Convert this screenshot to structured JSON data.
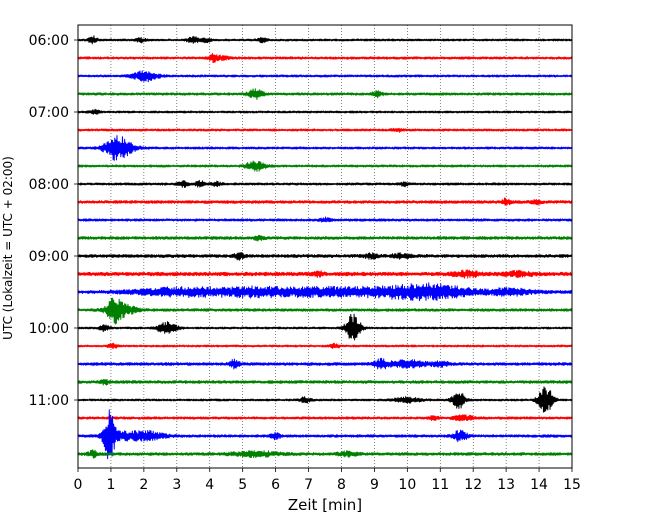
{
  "chart_data": {
    "type": "line",
    "chart_kind": "helicorder seismogram",
    "xlabel": "Zeit  [min]",
    "ylabel": "UTC (Lokalzeit = UTC + 02:00)",
    "xlim": [
      0,
      15
    ],
    "xticks": [
      "0",
      "1",
      "2",
      "3",
      "4",
      "5",
      "6",
      "7",
      "8",
      "9",
      "10",
      "11",
      "12",
      "13",
      "14",
      "15"
    ],
    "y_tick_labels": [
      {
        "trace_index": 0,
        "label": "06:00"
      },
      {
        "trace_index": 4,
        "label": "07:00"
      },
      {
        "trace_index": 8,
        "label": "08:00"
      },
      {
        "trace_index": 12,
        "label": "09:00"
      },
      {
        "trace_index": 16,
        "label": "10:00"
      },
      {
        "trace_index": 20,
        "label": "11:00"
      }
    ],
    "minutes_per_line": 15,
    "trace_colors_cycle": [
      "#000000",
      "#ff0000",
      "#0000ff",
      "#008000"
    ],
    "vertical_grid": "dotted, every 1 min",
    "traces": [
      {
        "start": "06:00",
        "noise": 1.0,
        "events": [
          [
            0.45,
            4,
            0.08
          ],
          [
            1.9,
            2,
            0.1
          ],
          [
            3.5,
            3,
            0.12
          ],
          [
            3.9,
            2,
            0.1
          ],
          [
            5.6,
            2,
            0.1
          ]
        ]
      },
      {
        "start": "06:15",
        "noise": 1.2,
        "events": [
          [
            4.1,
            3,
            0.1
          ],
          [
            4.35,
            2,
            0.15
          ]
        ]
      },
      {
        "start": "06:30",
        "noise": 1.1,
        "events": [
          [
            2.05,
            5,
            0.25
          ]
        ]
      },
      {
        "start": "06:45",
        "noise": 1.2,
        "events": [
          [
            5.4,
            5,
            0.15
          ],
          [
            9.1,
            3,
            0.1
          ]
        ]
      },
      {
        "start": "07:00",
        "noise": 1.0,
        "events": [
          [
            0.5,
            2,
            0.1
          ]
        ]
      },
      {
        "start": "07:15",
        "noise": 1.1,
        "events": [
          [
            9.7,
            2,
            0.1
          ]
        ]
      },
      {
        "start": "07:30",
        "noise": 1.1,
        "events": [
          [
            1.15,
            9,
            0.25
          ],
          [
            1.4,
            4,
            0.3
          ]
        ]
      },
      {
        "start": "07:45",
        "noise": 1.1,
        "events": [
          [
            5.4,
            5,
            0.2
          ]
        ]
      },
      {
        "start": "08:00",
        "noise": 1.1,
        "events": [
          [
            3.2,
            3,
            0.1
          ],
          [
            3.7,
            3,
            0.1
          ],
          [
            4.2,
            2,
            0.1
          ],
          [
            9.9,
            2,
            0.08
          ]
        ]
      },
      {
        "start": "08:15",
        "noise": 1.4,
        "events": [
          [
            13.0,
            3,
            0.1
          ],
          [
            13.9,
            2,
            0.1
          ]
        ]
      },
      {
        "start": "08:30",
        "noise": 1.2,
        "events": [
          [
            7.5,
            2,
            0.1
          ]
        ]
      },
      {
        "start": "08:45",
        "noise": 1.4,
        "events": [
          [
            5.5,
            2,
            0.1
          ]
        ]
      },
      {
        "start": "09:00",
        "noise": 1.5,
        "events": [
          [
            4.9,
            3,
            0.1
          ],
          [
            8.9,
            2,
            0.15
          ],
          [
            9.8,
            2,
            0.2
          ]
        ]
      },
      {
        "start": "09:15",
        "noise": 1.8,
        "events": [
          [
            7.3,
            2,
            0.1
          ],
          [
            11.8,
            2.5,
            0.3
          ],
          [
            13.4,
            2,
            0.3
          ]
        ]
      },
      {
        "start": "09:30",
        "noise": 1.5,
        "events": [
          [
            2.9,
            3.5,
            0.9
          ],
          [
            5.3,
            4.5,
            1.1
          ],
          [
            7.5,
            3,
            0.8
          ],
          [
            9.8,
            5.5,
            1.1
          ],
          [
            11.0,
            4,
            0.7
          ],
          [
            13.1,
            3,
            0.5
          ]
        ]
      },
      {
        "start": "09:45",
        "noise": 1.3,
        "events": [
          [
            1.1,
            10,
            0.15
          ],
          [
            1.35,
            5,
            0.3
          ]
        ]
      },
      {
        "start": "10:00",
        "noise": 1.0,
        "events": [
          [
            2.7,
            6,
            0.2
          ],
          [
            8.35,
            14,
            0.15
          ],
          [
            0.8,
            3,
            0.1
          ]
        ]
      },
      {
        "start": "10:15",
        "noise": 1.0,
        "events": [
          [
            1.05,
            2,
            0.1
          ],
          [
            7.8,
            2,
            0.1
          ]
        ]
      },
      {
        "start": "10:30",
        "noise": 1.4,
        "events": [
          [
            4.75,
            4,
            0.1
          ],
          [
            9.2,
            4,
            0.15
          ],
          [
            10.0,
            3.5,
            0.4
          ],
          [
            11.0,
            2,
            0.2
          ]
        ]
      },
      {
        "start": "10:45",
        "noise": 1.4,
        "events": [
          [
            0.8,
            2,
            0.1
          ]
        ]
      },
      {
        "start": "11:00",
        "noise": 1.0,
        "events": [
          [
            6.9,
            3,
            0.1
          ],
          [
            10.0,
            2.5,
            0.3
          ],
          [
            11.55,
            11,
            0.12
          ],
          [
            14.2,
            14,
            0.15
          ]
        ]
      },
      {
        "start": "11:15",
        "noise": 1.2,
        "events": [
          [
            10.8,
            2,
            0.1
          ],
          [
            11.7,
            2.5,
            0.2
          ]
        ]
      },
      {
        "start": "11:30",
        "noise": 1.3,
        "events": [
          [
            0.95,
            25,
            0.12
          ],
          [
            1.5,
            4,
            0.3
          ],
          [
            2.2,
            4,
            0.3
          ],
          [
            6.0,
            3,
            0.1
          ],
          [
            11.6,
            5,
            0.15
          ]
        ]
      },
      {
        "start": "11:45",
        "noise": 1.4,
        "events": [
          [
            0.45,
            3,
            0.1
          ],
          [
            5.4,
            2.5,
            0.5
          ],
          [
            8.2,
            2,
            0.2
          ]
        ]
      }
    ]
  }
}
